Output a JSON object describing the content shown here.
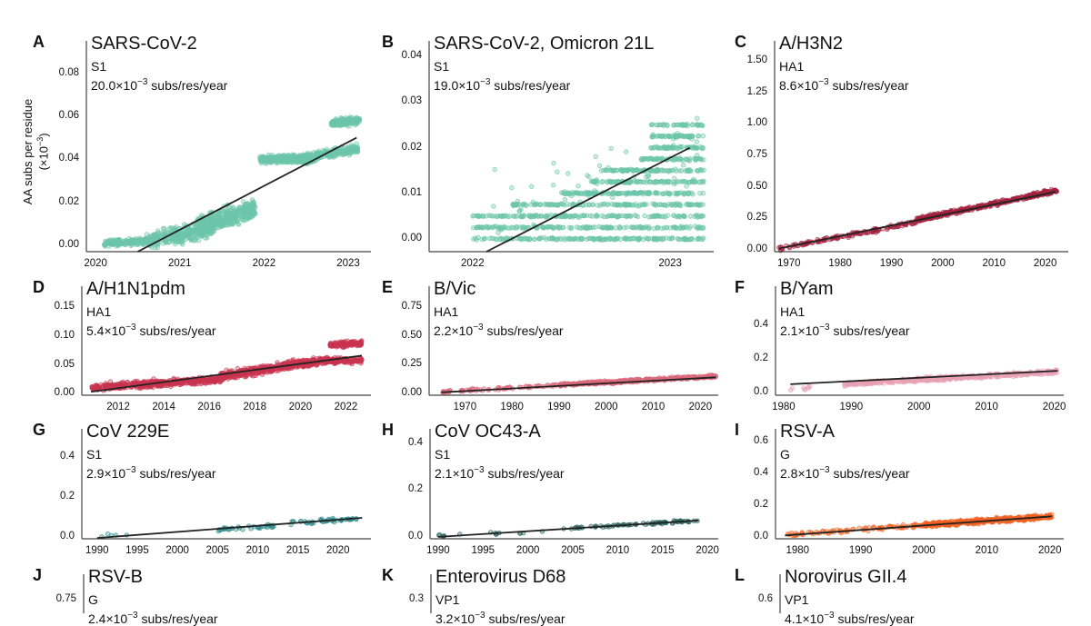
{
  "chart_data": [
    {
      "id": "A",
      "type": "scatter",
      "letter": "A",
      "title": "SARS-CoV-2",
      "gene": "S1",
      "rate": "20.0×10",
      "rate_exp": "−3",
      "rate_unit": "subs/res/year",
      "color": "#6cc5a8",
      "xlim": [
        2019.89,
        2023.27
      ],
      "ylim": [
        -0.003,
        0.095
      ],
      "xticks": [
        2020,
        2021,
        2022,
        2023
      ],
      "xtick_labels": [
        "2020",
        "2021",
        "2022",
        "2023"
      ],
      "yticks": [
        0,
        0.02,
        0.04,
        0.06,
        0.08
      ],
      "ytick_labels": [
        "0.00",
        "0.02",
        "0.04",
        "0.06",
        "0.08"
      ],
      "ylabel": "AA subs per residue",
      "ylabel_unit": "(×10",
      "ylabel_unit_exp": "−3",
      "ylabel_unit_end": ")",
      "trend": [
        [
          2020.5,
          -0.003
        ],
        [
          2023.1,
          0.05
        ]
      ],
      "clusters": [
        [
          2020.1,
          2020.7,
          0.001,
          0.002,
          0.0012,
          220
        ],
        [
          2020.6,
          2021.4,
          0.002,
          0.008,
          0.0032,
          320
        ],
        [
          2021.2,
          2021.9,
          0.008,
          0.017,
          0.004,
          420
        ],
        [
          2021.95,
          2022.6,
          0.04,
          0.04,
          0.0016,
          320
        ],
        [
          2022.4,
          2023.12,
          0.04,
          0.045,
          0.0016,
          320
        ],
        [
          2022.8,
          2023.14,
          0.057,
          0.058,
          0.0015,
          160
        ]
      ]
    },
    {
      "id": "B",
      "type": "scatter",
      "letter": "B",
      "title": "SARS-CoV-2, Omicron 21L",
      "gene": "S1",
      "rate": "19.0×10",
      "rate_exp": "−3",
      "rate_unit": "subs/res/year",
      "color": "#6cc5a8",
      "xlim": [
        2021.78,
        2023.22
      ],
      "ylim": [
        -0.0028,
        0.0434
      ],
      "xticks": [
        2022,
        2023
      ],
      "xtick_labels": [
        "2022",
        "2023"
      ],
      "yticks": [
        0,
        0.01,
        0.02,
        0.03,
        0.04
      ],
      "ytick_labels": [
        "0.00",
        "0.01",
        "0.02",
        "0.03",
        "0.04"
      ],
      "trend": [
        [
          2022.07,
          -0.0028
        ],
        [
          2023.1,
          0.02
        ]
      ],
      "clusters": [
        [
          2022.0,
          2023.17,
          0,
          0,
          0.0002,
          180
        ],
        [
          2022.0,
          2023.17,
          0.0025,
          0.0025,
          0.0002,
          170
        ],
        [
          2022.0,
          2023.17,
          0.005,
          0.005,
          0.0002,
          170
        ],
        [
          2022.2,
          2023.17,
          0.0075,
          0.0075,
          0.0002,
          150
        ],
        [
          2022.45,
          2023.17,
          0.01,
          0.01,
          0.0002,
          140
        ],
        [
          2022.6,
          2023.17,
          0.0125,
          0.0125,
          0.0002,
          110
        ],
        [
          2022.65,
          2023.17,
          0.015,
          0.015,
          0.0002,
          100
        ],
        [
          2022.85,
          2023.17,
          0.0175,
          0.0175,
          0.0002,
          60
        ],
        [
          2022.9,
          2023.17,
          0.02,
          0.02,
          0.0002,
          60
        ],
        [
          2022.9,
          2023.17,
          0.0225,
          0.0225,
          0.0002,
          60
        ],
        [
          2022.9,
          2023.17,
          0.025,
          0.025,
          0.0002,
          40
        ],
        [
          2022.1,
          2023.15,
          0.006,
          0.02,
          0.006,
          60
        ]
      ]
    },
    {
      "id": "C",
      "type": "scatter",
      "letter": "C",
      "title": "A/H3N2",
      "gene": "HA1",
      "rate": "8.6×10",
      "rate_exp": "−3",
      "rate_unit": "subs/res/year",
      "color": "#a3213f",
      "xlim": [
        1967.2,
        2024.5
      ],
      "ylim": [
        -0.014,
        1.657
      ],
      "xticks": [
        1970,
        1980,
        1990,
        2000,
        2010,
        2020
      ],
      "xtick_labels": [
        "1970",
        "1980",
        "1990",
        "2000",
        "2010",
        "2020"
      ],
      "yticks": [
        0,
        0.25,
        0.5,
        0.75,
        1.0,
        1.25,
        1.5
      ],
      "ytick_labels": [
        "0.00",
        "0.25",
        "0.50",
        "0.75",
        "1.00",
        "1.25",
        "1.50"
      ],
      "trend": [
        [
          1968,
          0.01
        ],
        [
          2022,
          0.46
        ]
      ],
      "clusters": [
        [
          1968,
          1995,
          0.01,
          0.22,
          0.012,
          140
        ],
        [
          1995,
          2022.3,
          0.24,
          0.47,
          0.014,
          380
        ]
      ]
    },
    {
      "id": "D",
      "type": "scatter",
      "letter": "D",
      "title": "A/H1N1pdm",
      "gene": "HA1",
      "rate": "5.4×10",
      "rate_exp": "−3",
      "rate_unit": "subs/res/year",
      "color": "#c8344f",
      "xlim": [
        2010.4,
        2023.1
      ],
      "ylim": [
        -0.003,
        0.187
      ],
      "xticks": [
        2012,
        2014,
        2016,
        2018,
        2020,
        2022
      ],
      "xtick_labels": [
        "2012",
        "2014",
        "2016",
        "2018",
        "2020",
        "2022"
      ],
      "yticks": [
        0,
        0.05,
        0.1,
        0.15
      ],
      "ytick_labels": [
        "0.00",
        "0.05",
        "0.10",
        "0.15"
      ],
      "trend": [
        [
          2010.8,
          0.003
        ],
        [
          2022.7,
          0.066
        ]
      ],
      "clusters": [
        [
          2010.8,
          2016.5,
          0.01,
          0.025,
          0.005,
          500
        ],
        [
          2016.5,
          2020.8,
          0.03,
          0.057,
          0.006,
          450
        ],
        [
          2020.8,
          2022.7,
          0.057,
          0.057,
          0.004,
          150
        ],
        [
          2021.3,
          2022.7,
          0.085,
          0.088,
          0.004,
          120
        ]
      ]
    },
    {
      "id": "E",
      "type": "scatter",
      "letter": "E",
      "title": "B/Vic",
      "gene": "HA1",
      "rate": "2.2×10",
      "rate_exp": "−3",
      "rate_unit": "subs/res/year",
      "color": "#d96a7c",
      "xlim": [
        1962.4,
        2023.8
      ],
      "ylim": [
        -0.015,
        0.93
      ],
      "xticks": [
        1970,
        1980,
        1990,
        2000,
        2010,
        2020
      ],
      "xtick_labels": [
        "1970",
        "1980",
        "1990",
        "2000",
        "2010",
        "2020"
      ],
      "yticks": [
        0,
        0.25,
        0.5,
        0.75
      ],
      "ytick_labels": [
        "0.00",
        "0.25",
        "0.50",
        "0.75"
      ],
      "trend": [
        [
          1965,
          0.01
        ],
        [
          2023.3,
          0.14
        ]
      ],
      "clusters": [
        [
          1965,
          1990,
          0.015,
          0.07,
          0.01,
          80
        ],
        [
          1990,
          2023.3,
          0.075,
          0.15,
          0.01,
          420
        ]
      ]
    },
    {
      "id": "F",
      "type": "scatter",
      "letter": "F",
      "title": "B/Yam",
      "gene": "HA1",
      "rate": "2.1×10",
      "rate_exp": "−3",
      "rate_unit": "subs/res/year",
      "color": "#e8a0b4",
      "xlim": [
        1978.8,
        2021.4
      ],
      "ylim": [
        -0.016,
        0.636
      ],
      "xticks": [
        1980,
        1990,
        2000,
        2010,
        2020
      ],
      "xtick_labels": [
        "1980",
        "1990",
        "2000",
        "2010",
        "2020"
      ],
      "yticks": [
        0,
        0.2,
        0.4
      ],
      "ytick_labels": [
        "0.0",
        "0.2",
        "0.4"
      ],
      "trend": [
        [
          1981,
          0.05
        ],
        [
          2020.5,
          0.13
        ]
      ],
      "clusters": [
        [
          1981,
          1984,
          0.02,
          0.03,
          0.01,
          8
        ],
        [
          1989,
          2020.5,
          0.05,
          0.125,
          0.01,
          420
        ]
      ]
    },
    {
      "id": "G",
      "type": "scatter",
      "letter": "G",
      "title": "CoV 229E",
      "gene": "S1",
      "rate": "2.9×10",
      "rate_exp": "−3",
      "rate_unit": "subs/res/year",
      "color": "#2a8a8a",
      "xlim": [
        1988.1,
        2024.1
      ],
      "ylim": [
        -0.009,
        0.538
      ],
      "xticks": [
        1990,
        1995,
        2000,
        2005,
        2010,
        2015,
        2020
      ],
      "xtick_labels": [
        "1990",
        "1995",
        "2000",
        "2005",
        "2010",
        "2015",
        "2020"
      ],
      "yticks": [
        0,
        0.2,
        0.4
      ],
      "ytick_labels": [
        "0.0",
        "0.2",
        "0.4"
      ],
      "trend": [
        [
          1990,
          -0.005
        ],
        [
          2023,
          0.095
        ]
      ],
      "clusters": [
        [
          1989,
          1996,
          0.005,
          0.02,
          0.006,
          5
        ],
        [
          2005,
          2012,
          0.035,
          0.055,
          0.008,
          35
        ],
        [
          2014,
          2023,
          0.07,
          0.09,
          0.01,
          45
        ]
      ]
    },
    {
      "id": "H",
      "type": "scatter",
      "letter": "H",
      "title": "CoV OC43-A",
      "gene": "S1",
      "rate": "2.1×10",
      "rate_exp": "−3",
      "rate_unit": "subs/res/year",
      "color": "#1f5e5a",
      "xlim": [
        1989.1,
        2021.2
      ],
      "ylim": [
        -0.008,
        0.46
      ],
      "xticks": [
        1990,
        1995,
        2000,
        2005,
        2010,
        2015,
        2020
      ],
      "xtick_labels": [
        "1990",
        "1995",
        "2000",
        "2005",
        "2010",
        "2015",
        "2020"
      ],
      "yticks": [
        0,
        0.2,
        0.4
      ],
      "ytick_labels": [
        "0.0",
        "0.2",
        "0.4"
      ],
      "trend": [
        [
          1990,
          0.0
        ],
        [
          2019,
          0.07
        ]
      ],
      "clusters": [
        [
          1990,
          2003,
          0.005,
          0.025,
          0.005,
          15
        ],
        [
          2004,
          2019,
          0.035,
          0.07,
          0.004,
          70
        ]
      ]
    },
    {
      "id": "I",
      "type": "scatter",
      "letter": "I",
      "title": "RSV-A",
      "gene": "G",
      "rate": "2.8×10",
      "rate_exp": "−3",
      "rate_unit": "subs/res/year",
      "color": "#f06020",
      "xlim": [
        1976.5,
        2022.2
      ],
      "ylim": [
        -0.011,
        0.68
      ],
      "xticks": [
        1980,
        1990,
        2000,
        2010,
        2020
      ],
      "xtick_labels": [
        "1980",
        "1990",
        "2000",
        "2010",
        "2020"
      ],
      "yticks": [
        0,
        0.2,
        0.4,
        0.6
      ],
      "ytick_labels": [
        "0.0",
        "0.2",
        "0.4",
        "0.6"
      ],
      "trend": [
        [
          1978,
          0.01
        ],
        [
          2020.3,
          0.13
        ]
      ],
      "clusters": [
        [
          1978,
          2000,
          0.015,
          0.075,
          0.01,
          90
        ],
        [
          2000,
          2020.3,
          0.075,
          0.13,
          0.012,
          380
        ]
      ]
    },
    {
      "id": "J",
      "type": "scatter",
      "letter": "J",
      "title": "RSV-B",
      "gene": "G",
      "rate": "2.4×10",
      "rate_exp": "−3",
      "rate_unit": "subs/res/year",
      "color": "#f06020",
      "xlim": [
        1976,
        2022
      ],
      "ylim": [
        0,
        0.986
      ],
      "xticks": [],
      "xtick_labels": [],
      "yticks": [
        0.75
      ],
      "ytick_labels": [
        "0.75"
      ],
      "trend": [],
      "clusters": []
    },
    {
      "id": "K",
      "type": "scatter",
      "letter": "K",
      "title": "Enterovirus D68",
      "gene": "VP1",
      "rate": "3.2×10",
      "rate_exp": "−3",
      "rate_unit": "subs/res/year",
      "color": "#2a8a8a",
      "xlim": [
        1960,
        2022
      ],
      "ylim": [
        0,
        0.394
      ],
      "xticks": [],
      "xtick_labels": [],
      "yticks": [
        0.3
      ],
      "ytick_labels": [
        "0.3"
      ],
      "trend": [],
      "clusters": []
    },
    {
      "id": "L",
      "type": "scatter",
      "letter": "L",
      "title": "Norovirus GII.4",
      "gene": "VP1",
      "rate": "4.1×10",
      "rate_exp": "−3",
      "rate_unit": "subs/res/year",
      "color": "#c8344f",
      "xlim": [
        1974,
        2022
      ],
      "ylim": [
        0,
        0.79
      ],
      "xticks": [],
      "xtick_labels": [],
      "yticks": [
        0.6
      ],
      "ytick_labels": [
        "0.6"
      ],
      "trend": [],
      "clusters": []
    }
  ]
}
